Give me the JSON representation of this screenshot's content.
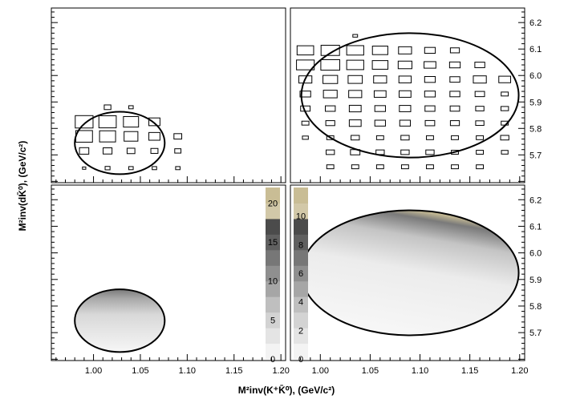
{
  "chart_data": {
    "type": "heatmap",
    "x_axis": {
      "label": "M²inv(K⁺K̄⁰), (GeV/c²)",
      "ticks": [
        "1.00",
        "1.05",
        "1.10",
        "1.15",
        "1.20"
      ],
      "tick_values": [
        1.0,
        1.05,
        1.1,
        1.15,
        1.2
      ]
    },
    "y_axis": {
      "label": "M²inv(dK̄⁰), (GeV/c²)",
      "ticks": [
        "5.7",
        "5.8",
        "5.9",
        "6.0",
        "6.1",
        "6.2"
      ],
      "tick_values": [
        5.7,
        5.8,
        5.9,
        6.0,
        6.1,
        6.2
      ]
    },
    "panels": [
      {
        "id": "top-left",
        "style": "box",
        "xlim": [
          0.955,
          1.205
        ],
        "ylim": [
          5.595,
          6.255
        ],
        "kinematic_boundary": {
          "cx": 1.028,
          "cy": 5.745,
          "rx": 0.048,
          "ry": 0.118
        },
        "grid_x": [
          0.99,
          1.015,
          1.04,
          1.065,
          1.09
        ],
        "grid_y": [
          5.65,
          5.715,
          5.77,
          5.825,
          5.88
        ],
        "box_sizes": [
          [
            0.15,
            0.22,
            0.2,
            0.2,
            0.2
          ],
          [
            0.42,
            0.4,
            0.35,
            0.32,
            0.28
          ],
          [
            0.75,
            0.72,
            0.62,
            0.5,
            0.35
          ],
          [
            0.8,
            0.78,
            0.68,
            0.5,
            0
          ],
          [
            0,
            0.3,
            0.2,
            0,
            0
          ]
        ]
      },
      {
        "id": "top-right",
        "style": "box",
        "xlim": [
          0.97,
          1.205
        ],
        "ylim": [
          5.595,
          6.255
        ],
        "kinematic_boundary": {
          "cx": 1.09,
          "cy": 5.925,
          "rx": 0.109,
          "ry": 0.235
        },
        "grid_x": [
          0.985,
          1.01,
          1.035,
          1.06,
          1.085,
          1.11,
          1.135,
          1.16,
          1.185
        ],
        "grid_y": [
          5.655,
          5.71,
          5.765,
          5.82,
          5.875,
          5.93,
          5.985,
          6.04,
          6.095,
          6.15
        ],
        "box_sizes": [
          [
            0,
            0.3,
            0.3,
            0.3,
            0.3,
            0.3,
            0.3,
            0.3,
            0
          ],
          [
            0,
            0.35,
            0.4,
            0.35,
            0.35,
            0.35,
            0.3,
            0.3,
            0.28
          ],
          [
            0.25,
            0.3,
            0.35,
            0.3,
            0.35,
            0.3,
            0.3,
            0.3,
            0.35
          ],
          [
            0.3,
            0.38,
            0.5,
            0.45,
            0.45,
            0.4,
            0.38,
            0.35,
            0.3
          ],
          [
            0.4,
            0.42,
            0.5,
            0.45,
            0.48,
            0.42,
            0.4,
            0.35,
            0.32
          ],
          [
            0.45,
            0.58,
            0.55,
            0.5,
            0.5,
            0.45,
            0.42,
            0.4,
            0.3
          ],
          [
            0.55,
            0.62,
            0.6,
            0.55,
            0.52,
            0.45,
            0.42,
            0.55,
            0.5
          ],
          [
            0.75,
            0.8,
            0.72,
            0.66,
            0.58,
            0.5,
            0.45,
            0.42,
            0
          ],
          [
            0.7,
            0.78,
            0.72,
            0.65,
            0.55,
            0.45,
            0.38,
            0,
            0
          ],
          [
            0,
            0,
            0.2,
            0,
            0,
            0,
            0,
            0,
            0
          ]
        ]
      },
      {
        "id": "bottom-left",
        "style": "colz",
        "xlim": [
          0.955,
          1.205
        ],
        "ylim": [
          5.595,
          6.255
        ],
        "kinematic_boundary": {
          "cx": 1.028,
          "cy": 5.745,
          "rx": 0.048,
          "ry": 0.118
        },
        "color_scale": {
          "min": 0,
          "max": 22,
          "labels": [
            "0",
            "5",
            "10",
            "15",
            "20"
          ],
          "label_values": [
            0,
            5,
            10,
            15,
            20
          ],
          "colors": [
            "#f3f3f3",
            "#e4e4e4",
            "#d3d3d3",
            "#bfbfbf",
            "#a6a6a6",
            "#8f8f8f",
            "#777777",
            "#606060",
            "#4b4b4b",
            "#d2c8a8",
            "#c9bd95"
          ]
        }
      },
      {
        "id": "bottom-right",
        "style": "colz",
        "xlim": [
          0.97,
          1.205
        ],
        "ylim": [
          5.595,
          6.255
        ],
        "kinematic_boundary": {
          "cx": 1.09,
          "cy": 5.925,
          "rx": 0.109,
          "ry": 0.235
        },
        "color_scale": {
          "min": 0,
          "max": 12,
          "labels": [
            "0",
            "2",
            "4",
            "6",
            "8",
            "10"
          ],
          "label_values": [
            0,
            2,
            4,
            6,
            8,
            10
          ],
          "colors": [
            "#f3f3f3",
            "#e4e4e4",
            "#d3d3d3",
            "#bfbfbf",
            "#a6a6a6",
            "#8f8f8f",
            "#777777",
            "#606060",
            "#4b4b4b",
            "#d2c8a8",
            "#c9bd95"
          ]
        }
      }
    ]
  }
}
